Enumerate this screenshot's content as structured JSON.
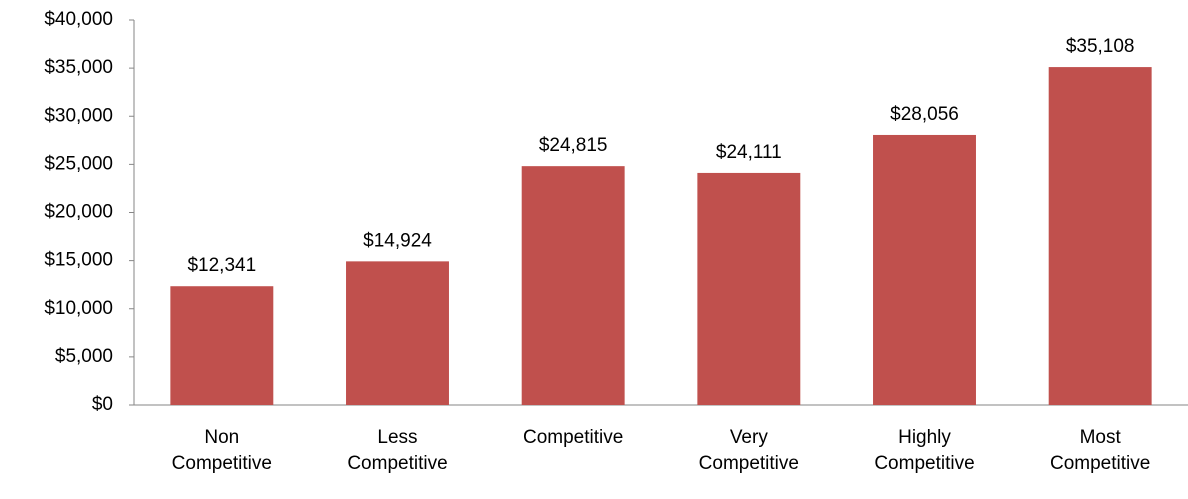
{
  "chart_data": {
    "type": "bar",
    "categories": [
      "Non Competitive",
      "Less Competitive",
      "Competitive",
      "Very Competitive",
      "Highly Competitive",
      "Most Competitive"
    ],
    "values": [
      12341,
      14924,
      24815,
      24111,
      28056,
      35108
    ],
    "value_labels": [
      "$12,341",
      "$14,924",
      "$24,815",
      "$24,111",
      "$28,056",
      "$35,108"
    ],
    "color": "#c0504d",
    "ylim": [
      0,
      40000
    ],
    "yticks": [
      {
        "value": 0,
        "label": "$0"
      },
      {
        "value": 5000,
        "label": "$5,000"
      },
      {
        "value": 10000,
        "label": "$10,000"
      },
      {
        "value": 15000,
        "label": "$15,000"
      },
      {
        "value": 20000,
        "label": "$20,000"
      },
      {
        "value": 25000,
        "label": "$25,000"
      },
      {
        "value": 30000,
        "label": "$30,000"
      },
      {
        "value": 35000,
        "label": "$35,000"
      },
      {
        "value": 40000,
        "label": "$40,000"
      }
    ],
    "grid": false
  }
}
